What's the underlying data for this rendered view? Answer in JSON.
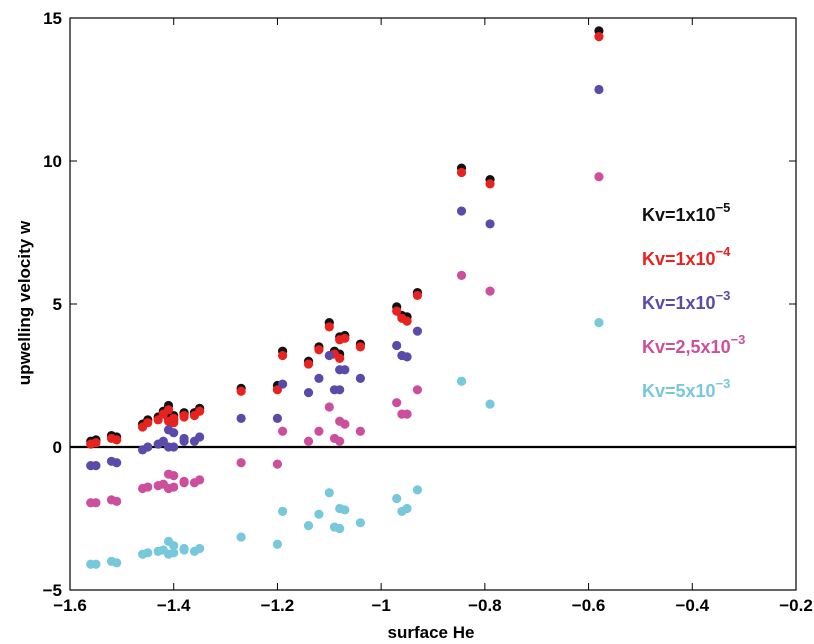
{
  "chart_data": {
    "type": "scatter",
    "xlabel": "surface He",
    "ylabel": "upwelling velocity w",
    "xlim": [
      -1.6,
      -0.2
    ],
    "ylim": [
      -5,
      15
    ],
    "xticks": [
      -1.6,
      -1.4,
      -1.2,
      -1,
      -0.8,
      -0.6,
      -0.4,
      -0.2
    ],
    "xtick_labels": [
      "−1.6",
      "−1.4",
      "−1.2",
      "−1",
      "−0.8",
      "−0.6",
      "−0.4",
      "−0.2"
    ],
    "yticks": [
      -5,
      0,
      5,
      10,
      15
    ],
    "ytick_labels": [
      "−5",
      "0",
      "5",
      "10",
      "15"
    ],
    "zero_line": true,
    "grid": false,
    "legend_position": "right",
    "x": [
      -1.56,
      -1.55,
      -1.52,
      -1.51,
      -1.46,
      -1.45,
      -1.43,
      -1.42,
      -1.41,
      -1.41,
      -1.4,
      -1.4,
      -1.38,
      -1.38,
      -1.36,
      -1.35,
      -1.27,
      -1.2,
      -1.19,
      -1.14,
      -1.12,
      -1.1,
      -1.09,
      -1.08,
      -1.08,
      -1.07,
      -1.04,
      -0.97,
      -0.96,
      -0.95,
      -0.93,
      -0.845,
      -0.79,
      -0.58
    ],
    "series": [
      {
        "name": "Kv=1x10⁻⁵",
        "label_base": "Kv=1x10",
        "label_exp": "−5",
        "color": "#111111",
        "values": [
          0.2,
          0.25,
          0.4,
          0.35,
          0.8,
          0.95,
          1.05,
          1.25,
          1.45,
          1.0,
          0.95,
          1.1,
          1.2,
          1.15,
          1.2,
          1.35,
          2.05,
          2.15,
          3.35,
          3.0,
          3.5,
          4.35,
          3.35,
          3.85,
          3.25,
          3.9,
          3.6,
          4.9,
          4.6,
          4.55,
          5.4,
          9.75,
          9.35,
          14.55
        ]
      },
      {
        "name": "Kv=1x10⁻⁴",
        "label_base": "Kv=1x10",
        "label_exp": "−4",
        "color": "#e8221e",
        "values": [
          0.1,
          0.15,
          0.3,
          0.25,
          0.7,
          0.85,
          0.95,
          1.15,
          1.3,
          0.9,
          0.85,
          1.0,
          1.1,
          1.05,
          1.1,
          1.25,
          1.95,
          2.0,
          3.2,
          2.9,
          3.4,
          4.2,
          3.25,
          3.75,
          3.1,
          3.8,
          3.5,
          4.75,
          4.5,
          4.4,
          5.3,
          9.6,
          9.2,
          14.35
        ]
      },
      {
        "name": "Kv=1x10⁻³",
        "label_base": "Kv=1x10",
        "label_exp": "−3",
        "color": "#5b4aa8",
        "values": [
          -0.65,
          -0.65,
          -0.5,
          -0.55,
          -0.1,
          0.0,
          0.1,
          0.2,
          0.6,
          0.0,
          0.0,
          0.5,
          0.2,
          0.3,
          0.2,
          0.35,
          1.0,
          1.0,
          2.2,
          1.9,
          2.4,
          3.2,
          2.0,
          2.7,
          2.0,
          2.7,
          2.4,
          3.55,
          3.2,
          3.15,
          4.05,
          8.25,
          7.8,
          12.5
        ]
      },
      {
        "name": "Kv=2,5x10⁻³",
        "label_base": "Kv=2,5x10",
        "label_exp": "−3",
        "color": "#cc4f9e",
        "values": [
          -1.95,
          -1.95,
          -1.85,
          -1.9,
          -1.45,
          -1.4,
          -1.35,
          -1.3,
          -0.95,
          -1.45,
          -1.4,
          -1.0,
          -1.25,
          -1.2,
          -1.25,
          -1.15,
          -0.55,
          -0.6,
          0.55,
          0.2,
          0.55,
          1.4,
          0.3,
          0.9,
          0.2,
          0.8,
          0.55,
          1.55,
          1.15,
          1.15,
          2.0,
          6.0,
          5.45,
          9.45
        ]
      },
      {
        "name": "Kv=5x10⁻³",
        "label_base": "Kv=5x10",
        "label_exp": "−3",
        "color": "#76c8da",
        "values": [
          -4.1,
          -4.1,
          -4.0,
          -4.05,
          -3.75,
          -3.7,
          -3.65,
          -3.6,
          -3.3,
          -3.75,
          -3.7,
          -3.45,
          -3.6,
          -3.55,
          -3.65,
          -3.55,
          -3.15,
          -3.4,
          -2.25,
          -2.75,
          -2.35,
          -1.6,
          -2.8,
          -2.15,
          -2.85,
          -2.2,
          -2.65,
          -1.8,
          -2.25,
          -2.15,
          -1.5,
          2.3,
          1.5,
          4.35
        ]
      }
    ]
  }
}
